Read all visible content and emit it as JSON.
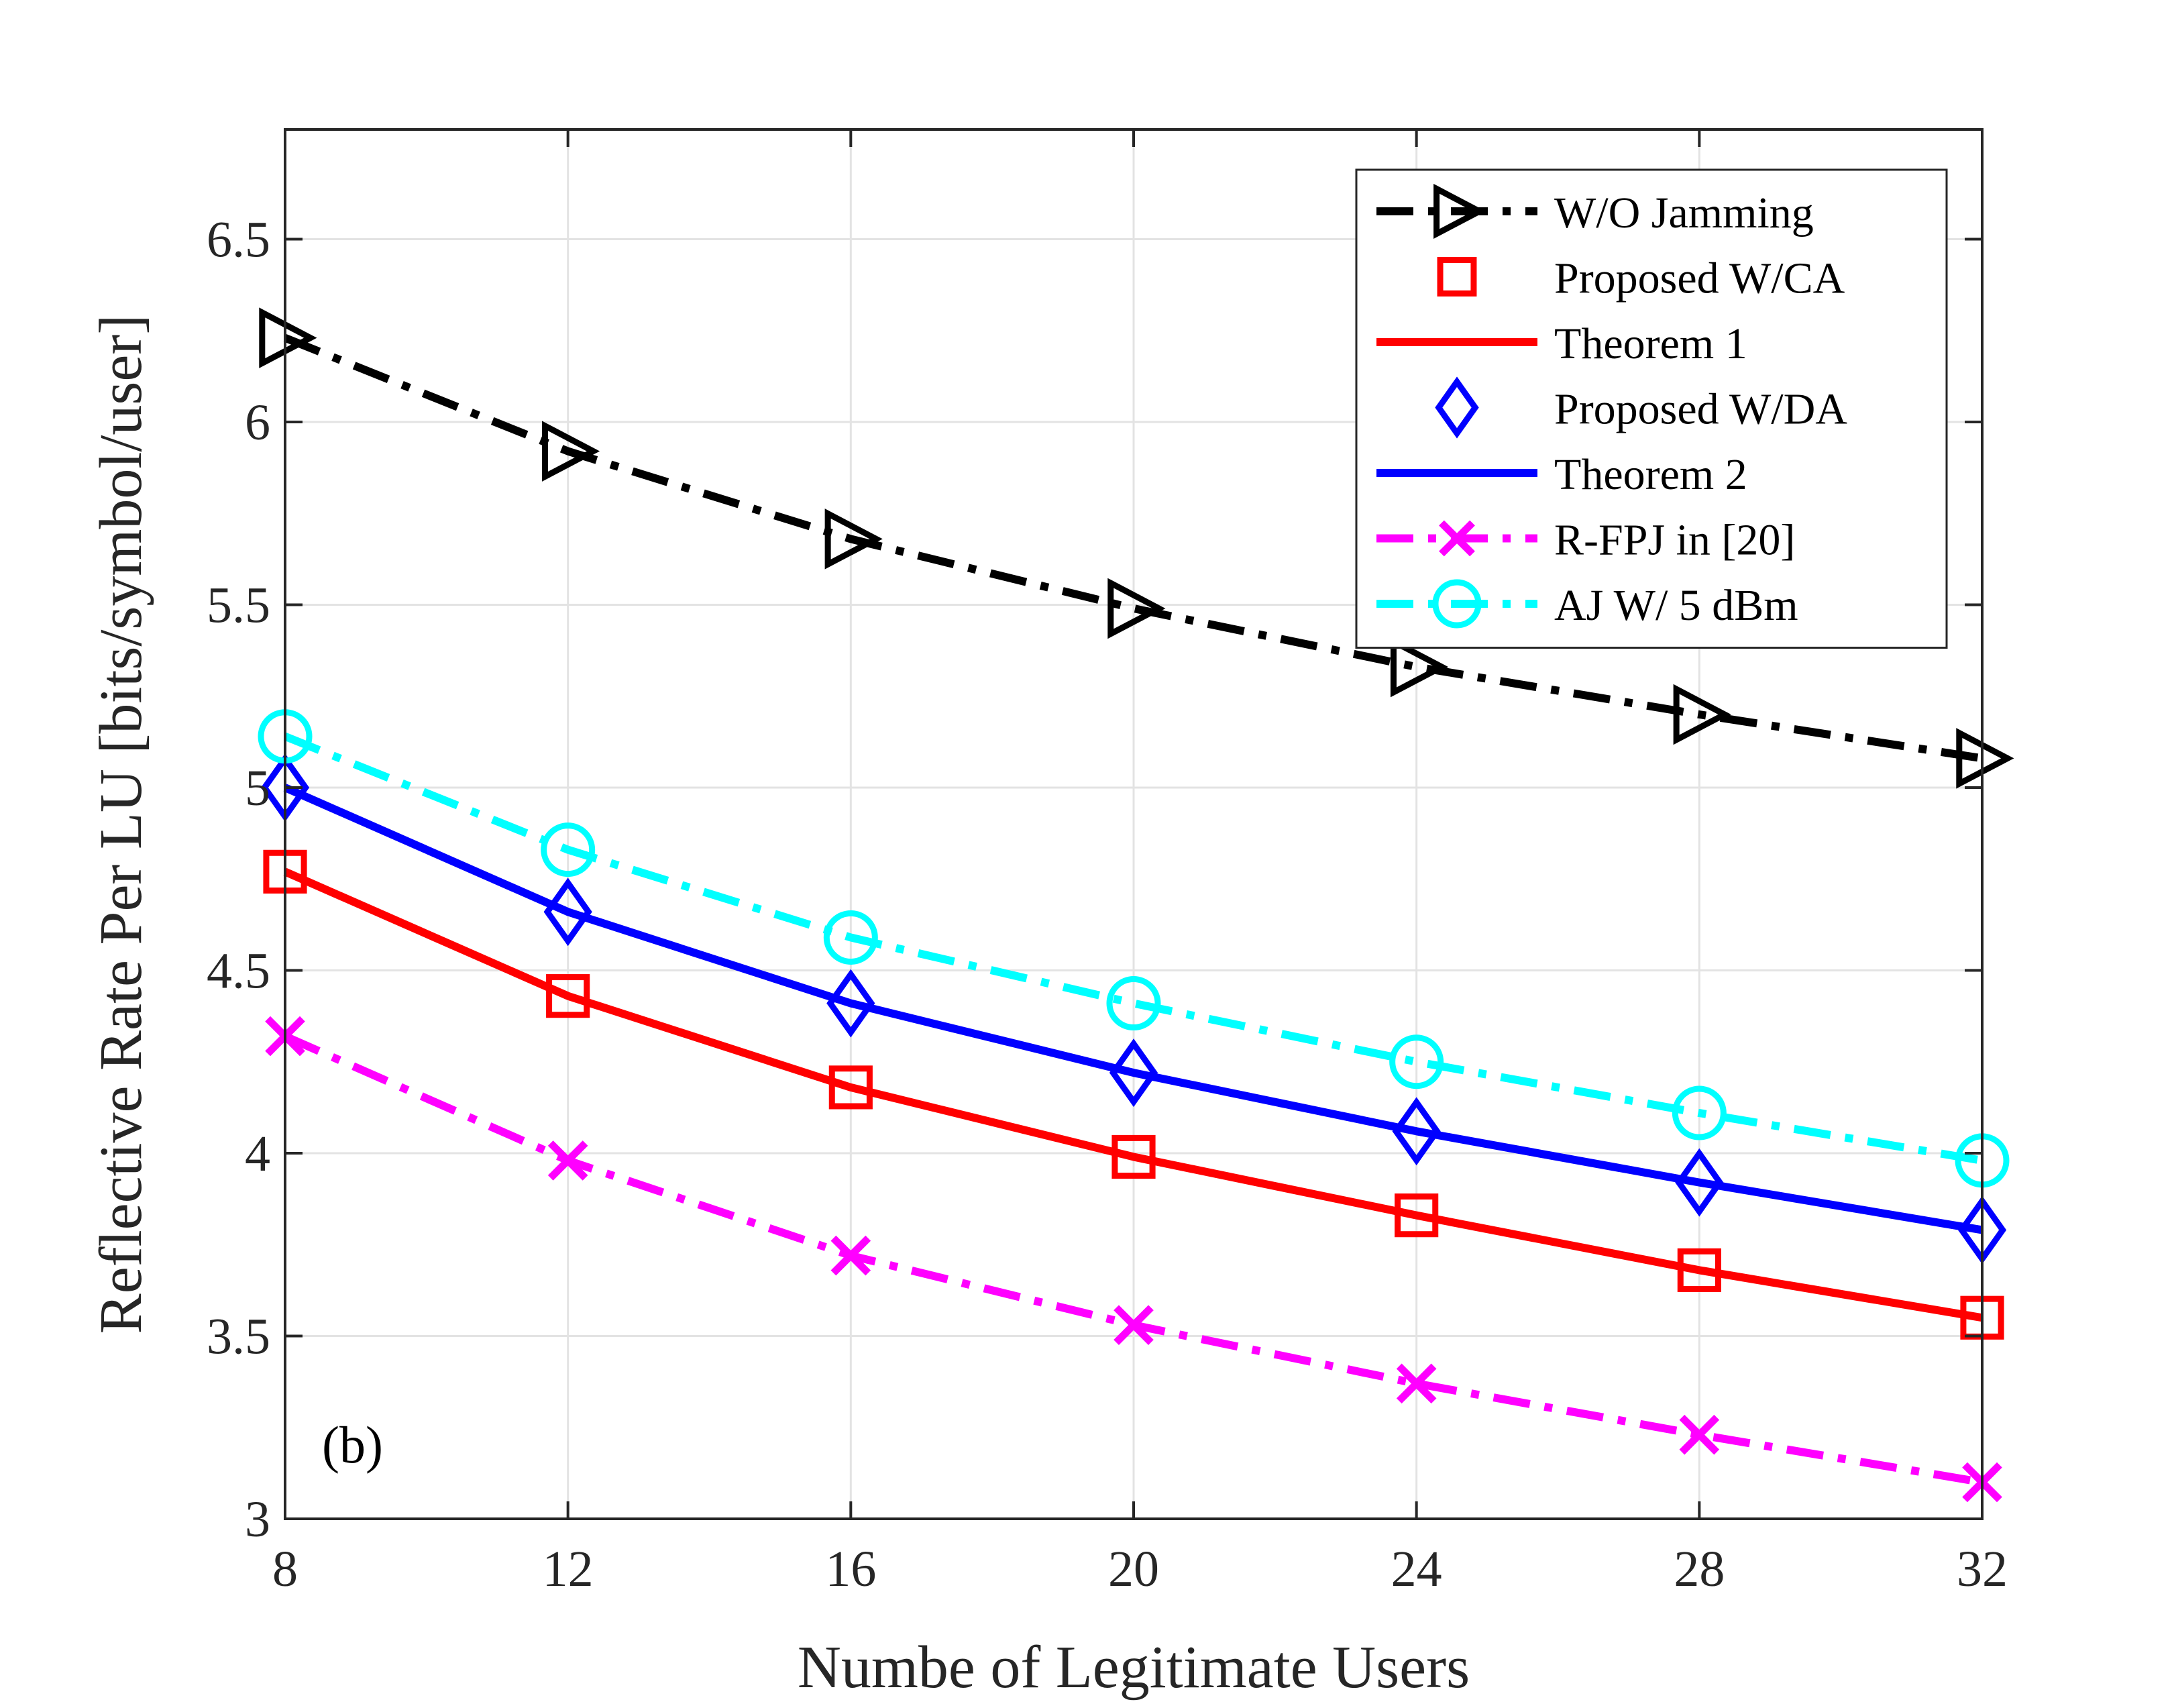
{
  "chart_data": {
    "type": "line",
    "title": "",
    "xlabel": "Numbe of Legitimate Users",
    "ylabel": "Reflective Rate Per LU [bits/symbol/user]",
    "x": [
      8,
      12,
      16,
      20,
      24,
      28,
      32
    ],
    "xlim": [
      8,
      32
    ],
    "ylim": [
      3,
      6.8
    ],
    "xticks": [
      8,
      12,
      16,
      20,
      24,
      28,
      32
    ],
    "yticks": [
      3,
      3.5,
      4,
      4.5,
      5,
      5.5,
      6,
      6.5
    ],
    "xtick_labels": [
      "8",
      "12",
      "16",
      "20",
      "24",
      "28",
      "32"
    ],
    "ytick_labels": [
      "3",
      "3.5",
      "4",
      "4.5",
      "5",
      "5.5",
      "6",
      "6.5"
    ],
    "grid": true,
    "legend_position": "top-right",
    "annotation": "(b)",
    "series": [
      {
        "name": "W/O Jamming",
        "color": "#000000",
        "line": "dashdot",
        "marker": "triangle-right",
        "values": [
          6.23,
          5.92,
          5.68,
          5.49,
          5.33,
          5.2,
          5.08
        ]
      },
      {
        "name": "Proposed W/CA",
        "color": "#ff0000",
        "line": "none",
        "marker": "square",
        "values": [
          4.77,
          4.43,
          4.18,
          3.99,
          3.83,
          3.68,
          3.55
        ]
      },
      {
        "name": "Theorem 1",
        "color": "#ff0000",
        "line": "solid",
        "marker": "none",
        "values": [
          4.77,
          4.43,
          4.18,
          3.99,
          3.83,
          3.68,
          3.55
        ]
      },
      {
        "name": "Proposed W/DA",
        "color": "#0000ff",
        "line": "none",
        "marker": "diamond",
        "values": [
          5.0,
          4.66,
          4.41,
          4.22,
          4.06,
          3.92,
          3.79
        ]
      },
      {
        "name": "Theorem 2",
        "color": "#0000ff",
        "line": "solid",
        "marker": "none",
        "values": [
          5.0,
          4.66,
          4.41,
          4.22,
          4.06,
          3.92,
          3.79
        ]
      },
      {
        "name": "R-FPJ in [20]",
        "color": "#ff00ff",
        "line": "dashdot",
        "marker": "x",
        "values": [
          4.32,
          3.98,
          3.72,
          3.53,
          3.37,
          3.23,
          3.1
        ]
      },
      {
        "name": "AJ W/ 5 dBm",
        "color": "#00ffff",
        "line": "dashdot",
        "marker": "circle",
        "values": [
          5.14,
          4.83,
          4.59,
          4.41,
          4.25,
          4.11,
          3.98
        ]
      }
    ]
  }
}
